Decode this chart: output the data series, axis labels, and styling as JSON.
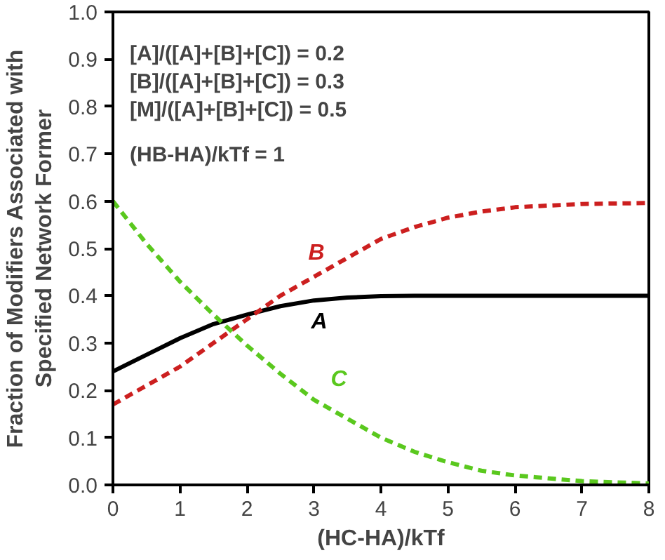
{
  "chart_data": {
    "type": "line",
    "xlabel": "(HC-HA)/kTf",
    "ylabel": "Fraction of Modifiers Associated with\nSpecified Network Former",
    "x": [
      0,
      0.5,
      1,
      1.5,
      2,
      2.5,
      3,
      3.5,
      4,
      4.5,
      5,
      5.5,
      6,
      7,
      8
    ],
    "series": [
      {
        "name": "A",
        "color": "#000000",
        "line_style": "solid",
        "values": [
          0.24,
          0.275,
          0.31,
          0.34,
          0.36,
          0.378,
          0.39,
          0.396,
          0.399,
          0.4,
          0.4,
          0.4,
          0.4,
          0.4,
          0.4
        ]
      },
      {
        "name": "B",
        "color": "#cc1f1f",
        "line_style": "dashed",
        "values": [
          0.17,
          0.21,
          0.25,
          0.3,
          0.35,
          0.4,
          0.44,
          0.48,
          0.52,
          0.545,
          0.565,
          0.578,
          0.587,
          0.594,
          0.596
        ]
      },
      {
        "name": "C",
        "color": "#5ac81e",
        "line_style": "dashed",
        "values": [
          0.6,
          0.51,
          0.43,
          0.36,
          0.295,
          0.235,
          0.18,
          0.14,
          0.1,
          0.07,
          0.048,
          0.03,
          0.02,
          0.008,
          0.003
        ]
      }
    ],
    "xlim": [
      0,
      8
    ],
    "xticks": [
      0,
      1,
      2,
      3,
      4,
      5,
      6,
      7,
      8
    ],
    "ylim": [
      0,
      1
    ],
    "yticks": [
      {
        "value": 0,
        "label": "0.0"
      },
      0.1,
      0.2,
      0.3,
      0.4,
      0.5,
      0.6,
      0.7,
      0.8,
      0.9,
      {
        "value": 1,
        "label": "1.0"
      }
    ],
    "annotations": [
      "[A]/([A]+[B]+[C]) = 0.2",
      "[B]/([A]+[B]+[C]) = 0.3",
      "[M]/([A]+[B]+[C]) = 0.5",
      "(HB-HA)/kTf = 1"
    ],
    "grid": false,
    "marker": "none"
  }
}
